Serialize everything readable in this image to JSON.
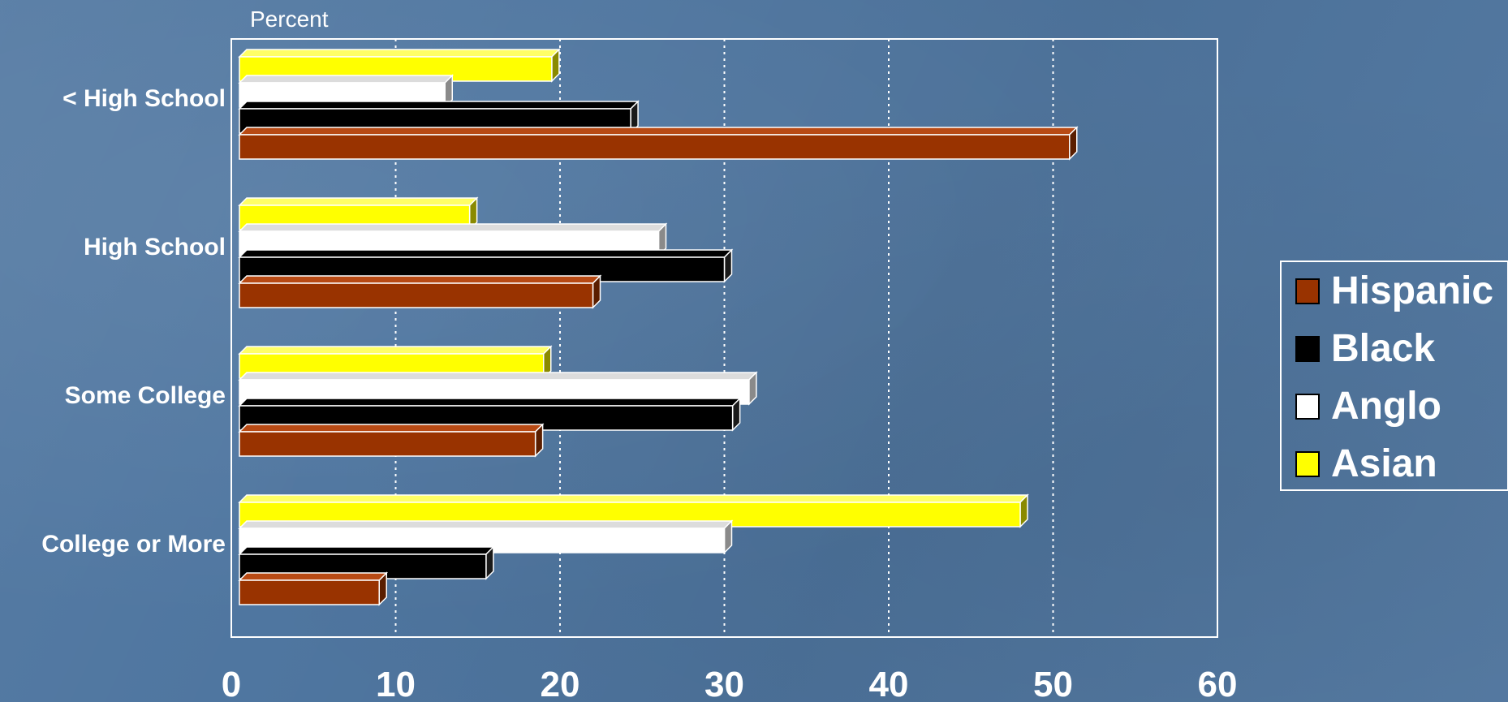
{
  "chart_data": {
    "type": "bar",
    "orientation": "horizontal",
    "unit_label": "Percent",
    "categories": [
      "< High School",
      "High School",
      "Some College",
      "College or More"
    ],
    "series": [
      {
        "name": "Hispanic",
        "color": "#993300",
        "values": [
          51,
          22,
          18.5,
          9
        ]
      },
      {
        "name": "Black",
        "color": "#000000",
        "values": [
          24.3,
          30,
          30.5,
          15.5
        ]
      },
      {
        "name": "Anglo",
        "color": "#ffffff",
        "values": [
          13,
          26,
          31.5,
          30
        ]
      },
      {
        "name": "Asian",
        "color": "#ffff00",
        "values": [
          19.5,
          14.5,
          19,
          48
        ]
      }
    ],
    "xlim": [
      0,
      60
    ],
    "xticks": [
      "0",
      "10",
      "20",
      "30",
      "40",
      "50",
      "60"
    ],
    "grid": "vertical dotted",
    "legend_position": "right"
  }
}
